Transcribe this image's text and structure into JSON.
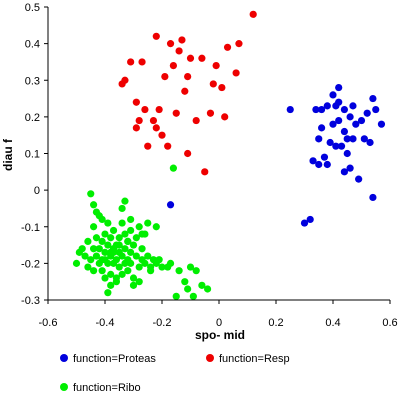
{
  "chart_data": {
    "type": "scatter",
    "xlabel": "spo- mid",
    "ylabel": "diau f",
    "xlim": [
      -0.6,
      0.6
    ],
    "ylim": [
      -0.3,
      0.5
    ],
    "x_ticks": [
      -0.6,
      -0.4,
      -0.2,
      0,
      0.2,
      0.4,
      0.6
    ],
    "x_tick_labels": [
      "-0.6",
      "-0.4",
      "-0.2",
      "0",
      "0.2",
      "0.4",
      "0.6"
    ],
    "y_ticks": [
      -0.3,
      -0.2,
      -0.1,
      0,
      0.1,
      0.2,
      0.3,
      0.4,
      0.5
    ],
    "y_tick_labels": [
      "-0.3",
      "-0.2",
      "-0.1",
      "0",
      "0.1",
      "0.2",
      "0.3",
      "0.4",
      "0.5"
    ],
    "grid": false,
    "legend_position": "bottom",
    "series": [
      {
        "name": "function=Proteas",
        "color": "#0000dd",
        "x": [
          0.25,
          0.3,
          0.32,
          0.33,
          0.34,
          0.35,
          0.35,
          0.36,
          0.36,
          0.37,
          0.38,
          0.38,
          0.39,
          0.4,
          0.4,
          0.41,
          0.41,
          0.42,
          0.42,
          0.43,
          0.44,
          0.44,
          0.45,
          0.45,
          0.46,
          0.46,
          0.47,
          0.47,
          0.48,
          0.49,
          0.5,
          0.51,
          0.53,
          0.54,
          0.54,
          0.55,
          0.57,
          0.42,
          0.44,
          0.52,
          -0.17
        ],
        "y": [
          0.22,
          -0.09,
          -0.08,
          0.08,
          0.22,
          0.14,
          0.07,
          0.22,
          0.17,
          0.09,
          0.23,
          0.07,
          0.13,
          0.26,
          0.18,
          0.23,
          0.12,
          0.24,
          0.19,
          0.12,
          0.22,
          0.05,
          0.14,
          0.1,
          0.2,
          0.06,
          0.23,
          0.14,
          0.18,
          0.03,
          0.19,
          0.14,
          0.13,
          0.25,
          -0.02,
          0.22,
          0.18,
          0.28,
          0.16,
          0.21,
          -0.04
        ]
      },
      {
        "name": "function=Resp",
        "color": "#ee0000",
        "x": [
          -0.34,
          -0.33,
          -0.31,
          -0.29,
          -0.29,
          -0.28,
          -0.27,
          -0.25,
          -0.23,
          -0.22,
          -0.21,
          -0.2,
          -0.19,
          -0.18,
          -0.17,
          -0.16,
          -0.15,
          -0.14,
          -0.13,
          -0.12,
          -0.11,
          -0.1,
          -0.08,
          -0.06,
          -0.05,
          -0.03,
          -0.02,
          -0.01,
          0.01,
          0.02,
          0.03,
          0.06,
          0.07,
          0.12,
          -0.22,
          -0.26,
          -0.11
        ],
        "y": [
          0.29,
          0.3,
          0.35,
          0.24,
          0.17,
          0.19,
          0.35,
          0.12,
          0.19,
          0.42,
          0.22,
          0.15,
          0.31,
          0.12,
          0.4,
          0.34,
          0.21,
          0.38,
          0.41,
          0.27,
          0.31,
          0.36,
          0.19,
          0.36,
          0.05,
          0.21,
          0.29,
          0.34,
          0.28,
          0.2,
          0.39,
          0.32,
          0.4,
          0.48,
          0.17,
          0.22,
          0.1
        ]
      },
      {
        "name": "function=Ribo",
        "color": "#00ee00",
        "x": [
          -0.5,
          -0.49,
          -0.48,
          -0.47,
          -0.46,
          -0.46,
          -0.45,
          -0.45,
          -0.44,
          -0.44,
          -0.44,
          -0.43,
          -0.43,
          -0.42,
          -0.42,
          -0.42,
          -0.41,
          -0.41,
          -0.41,
          -0.4,
          -0.4,
          -0.4,
          -0.39,
          -0.39,
          -0.39,
          -0.38,
          -0.38,
          -0.38,
          -0.37,
          -0.37,
          -0.37,
          -0.36,
          -0.36,
          -0.36,
          -0.35,
          -0.35,
          -0.35,
          -0.34,
          -0.34,
          -0.34,
          -0.33,
          -0.33,
          -0.33,
          -0.32,
          -0.32,
          -0.32,
          -0.31,
          -0.31,
          -0.31,
          -0.3,
          -0.3,
          -0.29,
          -0.29,
          -0.28,
          -0.28,
          -0.27,
          -0.27,
          -0.26,
          -0.26,
          -0.25,
          -0.24,
          -0.23,
          -0.22,
          -0.21,
          -0.2,
          -0.18,
          -0.17,
          -0.16,
          -0.15,
          -0.14,
          -0.12,
          -0.11,
          -0.1,
          -0.09,
          -0.08,
          -0.06,
          -0.04,
          -0.44,
          -0.43,
          -0.41,
          -0.39,
          -0.38,
          -0.36,
          -0.34,
          -0.33,
          -0.31,
          -0.3,
          -0.28,
          -0.27,
          -0.25,
          -0.24,
          -0.22,
          -0.38,
          -0.35,
          -0.32,
          -0.4,
          -0.37
        ],
        "y": [
          -0.2,
          -0.17,
          -0.16,
          -0.18,
          -0.21,
          -0.14,
          -0.19,
          -0.01,
          -0.16,
          -0.22,
          -0.1,
          -0.18,
          -0.13,
          -0.2,
          -0.16,
          -0.07,
          -0.22,
          -0.14,
          -0.19,
          -0.17,
          -0.12,
          -0.24,
          -0.2,
          -0.15,
          -0.09,
          -0.18,
          -0.13,
          -0.23,
          -0.16,
          -0.2,
          -0.11,
          -0.19,
          -0.15,
          -0.25,
          -0.17,
          -0.13,
          -0.21,
          -0.18,
          -0.09,
          -0.23,
          -0.16,
          -0.2,
          -0.12,
          -0.19,
          -0.14,
          -0.22,
          -0.17,
          -0.11,
          -0.2,
          -0.15,
          -0.24,
          -0.18,
          -0.13,
          -0.21,
          -0.1,
          -0.19,
          -0.16,
          -0.2,
          -0.12,
          -0.18,
          -0.21,
          -0.19,
          -0.2,
          -0.19,
          -0.21,
          -0.21,
          -0.2,
          0.06,
          -0.29,
          -0.22,
          -0.25,
          -0.27,
          -0.21,
          -0.29,
          -0.22,
          -0.26,
          -0.27,
          -0.04,
          -0.06,
          -0.08,
          -0.28,
          -0.26,
          -0.24,
          -0.05,
          -0.03,
          -0.08,
          -0.26,
          -0.25,
          -0.12,
          -0.09,
          -0.22,
          -0.1,
          -0.17,
          -0.15,
          -0.14,
          -0.19,
          -0.17
        ]
      }
    ]
  }
}
